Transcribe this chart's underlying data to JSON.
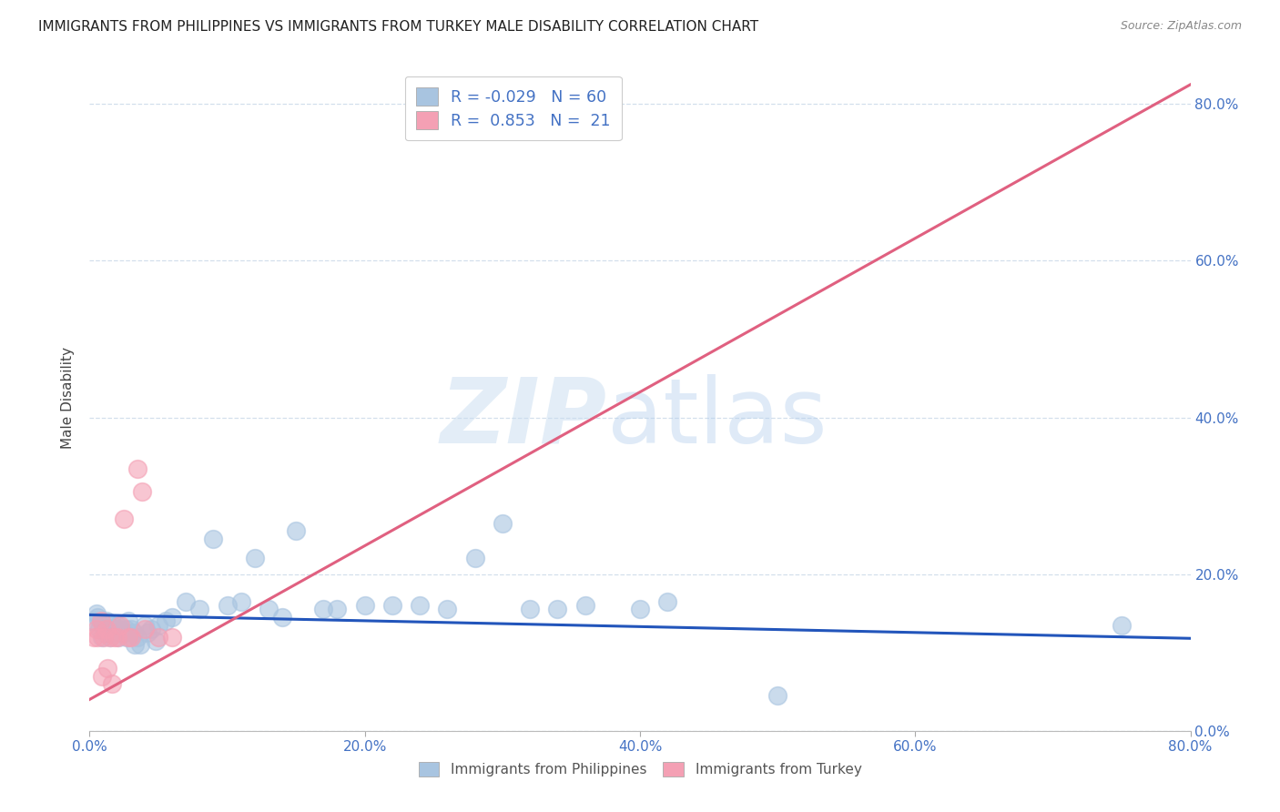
{
  "title": "IMMIGRANTS FROM PHILIPPINES VS IMMIGRANTS FROM TURKEY MALE DISABILITY CORRELATION CHART",
  "source": "Source: ZipAtlas.com",
  "ylabel": "Male Disability",
  "xlim": [
    0.0,
    0.8
  ],
  "ylim": [
    0.0,
    0.85
  ],
  "ytick_labels": [
    "0.0%",
    "20.0%",
    "40.0%",
    "60.0%",
    "80.0%"
  ],
  "ytick_vals": [
    0.0,
    0.2,
    0.4,
    0.6,
    0.8
  ],
  "xtick_labels": [
    "0.0%",
    "20.0%",
    "40.0%",
    "60.0%",
    "80.0%"
  ],
  "xtick_vals": [
    0.0,
    0.2,
    0.4,
    0.6,
    0.8
  ],
  "philippines_color": "#a8c4e0",
  "turkey_color": "#f4a0b4",
  "philippines_line_color": "#2255bb",
  "turkey_line_color": "#e06080",
  "legend_r_philippines": "-0.029",
  "legend_n_philippines": "60",
  "legend_r_turkey": "0.853",
  "legend_n_turkey": "21",
  "philippines_scatter_x": [
    0.003,
    0.005,
    0.006,
    0.007,
    0.008,
    0.009,
    0.01,
    0.011,
    0.012,
    0.013,
    0.014,
    0.015,
    0.016,
    0.017,
    0.018,
    0.019,
    0.02,
    0.021,
    0.022,
    0.023,
    0.025,
    0.026,
    0.027,
    0.028,
    0.03,
    0.032,
    0.033,
    0.035,
    0.037,
    0.04,
    0.042,
    0.045,
    0.048,
    0.05,
    0.055,
    0.06,
    0.07,
    0.08,
    0.09,
    0.1,
    0.11,
    0.12,
    0.13,
    0.14,
    0.15,
    0.17,
    0.18,
    0.2,
    0.22,
    0.24,
    0.26,
    0.28,
    0.3,
    0.32,
    0.34,
    0.36,
    0.4,
    0.42,
    0.5,
    0.75
  ],
  "philippines_scatter_y": [
    0.14,
    0.15,
    0.145,
    0.13,
    0.14,
    0.12,
    0.13,
    0.125,
    0.14,
    0.125,
    0.13,
    0.12,
    0.13,
    0.135,
    0.125,
    0.13,
    0.135,
    0.12,
    0.13,
    0.125,
    0.125,
    0.13,
    0.12,
    0.14,
    0.13,
    0.125,
    0.11,
    0.12,
    0.11,
    0.135,
    0.125,
    0.13,
    0.115,
    0.135,
    0.14,
    0.145,
    0.165,
    0.155,
    0.245,
    0.16,
    0.165,
    0.22,
    0.155,
    0.145,
    0.255,
    0.155,
    0.155,
    0.16,
    0.16,
    0.16,
    0.155,
    0.22,
    0.265,
    0.155,
    0.155,
    0.16,
    0.155,
    0.165,
    0.045,
    0.135
  ],
  "turkey_scatter_x": [
    0.003,
    0.005,
    0.006,
    0.008,
    0.009,
    0.01,
    0.012,
    0.013,
    0.015,
    0.016,
    0.018,
    0.02,
    0.022,
    0.025,
    0.028,
    0.03,
    0.035,
    0.038,
    0.04,
    0.05,
    0.06
  ],
  "turkey_scatter_y": [
    0.12,
    0.13,
    0.12,
    0.14,
    0.07,
    0.12,
    0.13,
    0.08,
    0.12,
    0.06,
    0.12,
    0.12,
    0.135,
    0.27,
    0.12,
    0.12,
    0.335,
    0.305,
    0.13,
    0.12,
    0.12
  ],
  "philippines_trendline_x": [
    0.0,
    0.8
  ],
  "philippines_trendline_y": [
    0.148,
    0.118
  ],
  "turkey_trendline_x": [
    0.0,
    0.8
  ],
  "turkey_trendline_y": [
    0.04,
    0.825
  ]
}
